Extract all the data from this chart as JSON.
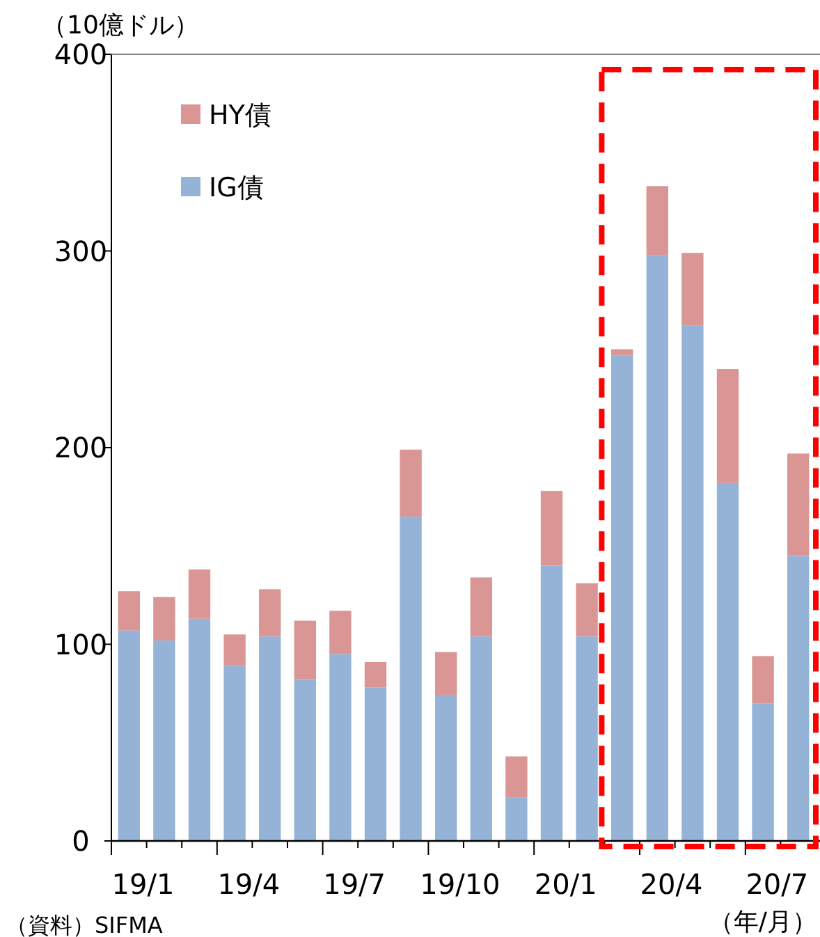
{
  "chart_data": {
    "type": "bar",
    "stacked": true,
    "ylabel": "（10億ドル）",
    "xlabel": "（年/月）",
    "categories": [
      "19/1",
      null,
      null,
      "19/4",
      null,
      null,
      "19/7",
      null,
      null,
      "19/10",
      null,
      null,
      "20/1",
      null,
      null,
      "20/4",
      null,
      null,
      "20/7",
      null
    ],
    "series": [
      {
        "name": "IG債",
        "color": "#95b3d7",
        "values": [
          107,
          102,
          113,
          89,
          104,
          82,
          95,
          78,
          165,
          74,
          104,
          22,
          140,
          104,
          247,
          298,
          262,
          182,
          70,
          145
        ]
      },
      {
        "name": "HY債",
        "color": "#d99694",
        "values": [
          20,
          22,
          25,
          16,
          24,
          30,
          22,
          13,
          34,
          22,
          30,
          21,
          38,
          27,
          3,
          35,
          37,
          58,
          24,
          52
        ]
      }
    ],
    "ylim": [
      0,
      400
    ],
    "yticks": [
      0,
      100,
      200,
      300,
      400
    ],
    "legend": "top left",
    "annotations": [
      "（資料）SIFMA"
    ]
  }
}
